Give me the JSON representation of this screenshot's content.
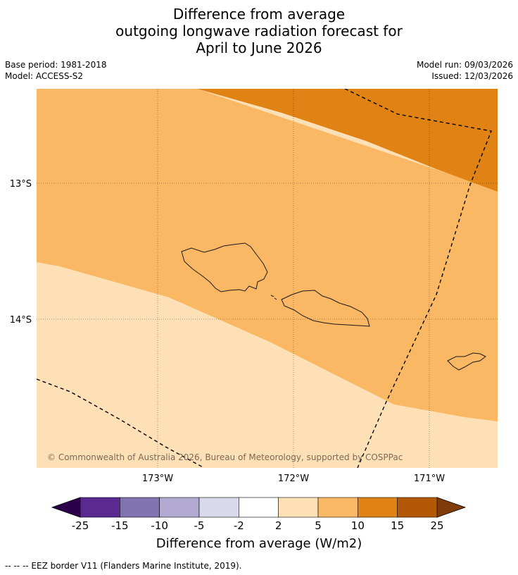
{
  "title": {
    "line1": "Difference from average",
    "line2": "outgoing longwave radiation forecast for",
    "line3": "April to June 2026"
  },
  "meta": {
    "base_period": "Base period: 1981-2018",
    "model": "Model: ACCESS-S2",
    "model_run": "Model run: 09/03/2026",
    "issued": "Issued: 12/03/2026"
  },
  "map": {
    "lat_labels": [
      "13°S",
      "14°S"
    ],
    "lon_labels": [
      "173°W",
      "172°W",
      "171°W"
    ],
    "copyright": "© Commonwealth of Australia 2026, Bureau of Meteorology, supported by COSPPac",
    "region_colors": {
      "band_2_5": "#fde0b6",
      "band_5_10": "#fab764",
      "band_10_15": "#e08214"
    }
  },
  "colorbar": {
    "ticks": [
      "-25",
      "-15",
      "-10",
      "-5",
      "-2",
      "2",
      "5",
      "10",
      "15",
      "25"
    ],
    "colors": [
      "#5a2a91",
      "#8174b0",
      "#b2aad2",
      "#d8daeb",
      "#ffffff",
      "#fde0b6",
      "#fab764",
      "#e08214",
      "#b35806"
    ],
    "under_color": "#2d004b",
    "over_color": "#7f3b08",
    "label": "Difference from average (W/m2)"
  },
  "footnote": "--  --  -- EEZ border V11 (Flanders Marine Institute, 2019)."
}
